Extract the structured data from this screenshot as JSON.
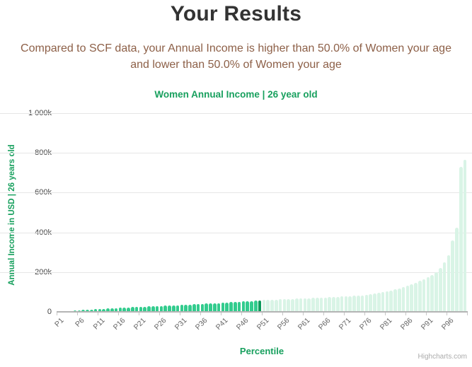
{
  "page": {
    "title": "Your Results",
    "subtitle_line1": "Compared to SCF data, your Annual Income is higher than 50.0% of Women your age",
    "subtitle_line2": "and lower than 50.0% of Women your age"
  },
  "chart_data": {
    "type": "bar",
    "title": "Women Annual Income | 26 year old",
    "xlabel": "Percentile",
    "ylabel": "Annual Income in USD | 26 years old",
    "ylim": [
      0,
      1000000
    ],
    "grid": true,
    "legend": false,
    "n_bars": 100,
    "category_prefix": "P",
    "y_tick_labels": [
      "0",
      "200k",
      "400k",
      "600k",
      "800k",
      "1 000k"
    ],
    "x_tick_labels": [
      "P1",
      "P6",
      "P11",
      "P16",
      "P21",
      "P26",
      "P31",
      "P36",
      "P41",
      "P46",
      "P51",
      "P56",
      "P61",
      "P66",
      "P71",
      "P76",
      "P81",
      "P86",
      "P91",
      "P96"
    ],
    "x_tick_step": 5,
    "highlight_index": 49,
    "highlight_category": "P50",
    "values": [
      1000,
      2000,
      3200,
      4500,
      6000,
      7500,
      9000,
      10500,
      12000,
      13000,
      14500,
      15500,
      17000,
      18000,
      19000,
      20000,
      21500,
      22500,
      23500,
      24500,
      25500,
      26500,
      27000,
      28000,
      28500,
      29500,
      30500,
      31500,
      32500,
      33500,
      34500,
      35500,
      36500,
      37500,
      38500,
      40000,
      41000,
      42500,
      43500,
      44500,
      46000,
      47000,
      48500,
      50000,
      51000,
      52500,
      54000,
      55000,
      56500,
      58000,
      60000,
      60500,
      61000,
      62000,
      62500,
      63500,
      64000,
      65000,
      66000,
      66500,
      67500,
      68500,
      69500,
      70000,
      71000,
      72000,
      73500,
      74500,
      75500,
      77000,
      78000,
      79500,
      80500,
      82000,
      83500,
      85000,
      88000,
      91000,
      95000,
      100000,
      104000,
      108000,
      113000,
      118000,
      124000,
      131000,
      138000,
      146000,
      155000,
      165000,
      175000,
      186000,
      198000,
      220000,
      250000,
      285000,
      360000,
      425000,
      730000,
      765000
    ],
    "colors": {
      "below_or_equal": "#33cc8e",
      "highlight": "#0e9b5c",
      "above": "#d9f4e6",
      "title_green": "#18a05e",
      "subtitle_brown": "#8d6048",
      "gridline": "#e6e6e6",
      "axis_line": "#b4b4b4"
    }
  },
  "credits": {
    "label": "Highcharts.com"
  }
}
